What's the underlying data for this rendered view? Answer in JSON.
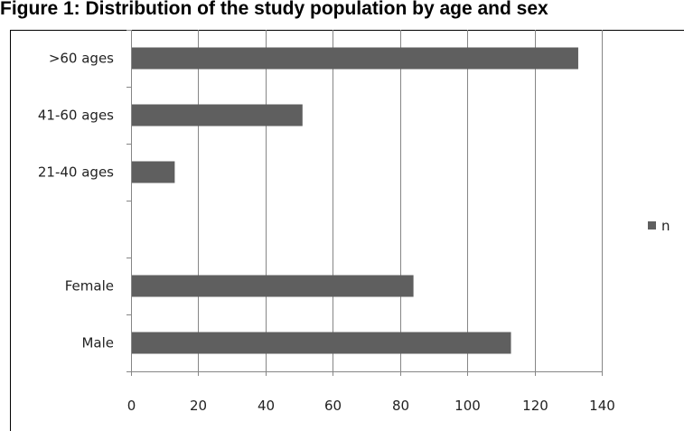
{
  "chart_data": {
    "type": "bar",
    "orientation": "horizontal",
    "title": "Figure 1: Distribution of the study population by age and sex",
    "categories": [
      ">60 ages",
      "41-60 ages",
      "21-40 ages",
      "",
      "Female",
      "Male"
    ],
    "series": [
      {
        "name": "n",
        "values": [
          133,
          51,
          13,
          null,
          84,
          113
        ],
        "color": "#5f5f5f"
      }
    ],
    "xlim": [
      0,
      140
    ],
    "xticks": [
      "0",
      "20",
      "40",
      "60",
      "80",
      "100",
      "120",
      "140"
    ],
    "grid": "vertical",
    "legend": "right",
    "xlabel": "",
    "ylabel": ""
  }
}
